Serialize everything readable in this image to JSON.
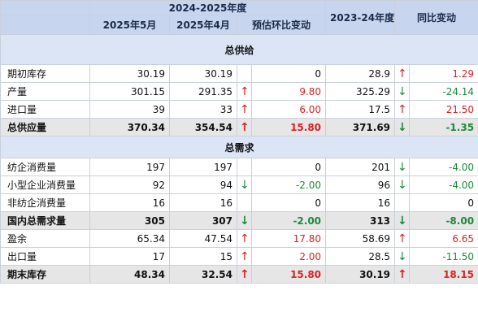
{
  "header": {
    "group_2425": "2024-2025年度",
    "may_2025": "2025年5月",
    "apr_2025": "2025年4月",
    "mom_change": "预估环比变动",
    "year_2324": "2023-24年度",
    "yoy_change": "同比变动"
  },
  "sections": {
    "supply": "总供给",
    "demand": "总需求"
  },
  "rows": {
    "opening_stock": {
      "label": "期初库存",
      "may": "30.19",
      "apr": "30.19",
      "mom": "0",
      "prev": "28.9",
      "yoy": "1.29",
      "yoy_dir": "up"
    },
    "output": {
      "label": "产量",
      "may": "301.15",
      "apr": "291.35",
      "mom": "9.80",
      "mom_dir": "up",
      "prev": "325.29",
      "yoy": "-24.14",
      "yoy_dir": "down"
    },
    "imports": {
      "label": "进口量",
      "may": "39",
      "apr": "33",
      "mom": "6.00",
      "mom_dir": "up",
      "prev": "17.5",
      "yoy": "21.50",
      "yoy_dir": "up"
    },
    "total_supply": {
      "label": "总供应量",
      "may": "370.34",
      "apr": "354.54",
      "mom": "15.80",
      "mom_dir": "up",
      "prev": "371.69",
      "yoy": "-1.35",
      "yoy_dir": "down"
    },
    "mill_use": {
      "label": "纺企消费量",
      "may": "197",
      "apr": "197",
      "mom": "0",
      "prev": "201",
      "yoy": "-4.00",
      "yoy_dir": "down"
    },
    "small_mill_use": {
      "label": "小型企业消费量",
      "may": "92",
      "apr": "94",
      "mom": "-2.00",
      "mom_dir": "down",
      "prev": "96",
      "yoy": "-4.00",
      "yoy_dir": "down"
    },
    "non_mill_use": {
      "label": "非纺企消费量",
      "may": "16",
      "apr": "16",
      "mom": "0",
      "prev": "16",
      "yoy": "0"
    },
    "domestic_demand": {
      "label": "国内总需求量",
      "may": "305",
      "apr": "307",
      "mom": "-2.00",
      "mom_dir": "down",
      "prev": "313",
      "yoy": "-8.00",
      "yoy_dir": "down"
    },
    "surplus": {
      "label": "盈余",
      "may": "65.34",
      "apr": "47.54",
      "mom": "17.80",
      "mom_dir": "up",
      "prev": "58.69",
      "yoy": "6.65",
      "yoy_dir": "up"
    },
    "exports": {
      "label": "出口量",
      "may": "17",
      "apr": "15",
      "mom": "2.00",
      "mom_dir": "up",
      "prev": "28.5",
      "yoy": "-11.50",
      "yoy_dir": "down"
    },
    "ending_stock": {
      "label": "期末库存",
      "may": "48.34",
      "apr": "32.54",
      "mom": "15.80",
      "mom_dir": "up",
      "prev": "30.19",
      "yoy": "18.15",
      "yoy_dir": "up"
    }
  },
  "icons": {
    "up": "↑",
    "down": "↓"
  },
  "colors": {
    "header_bg": "#c7d6ee",
    "section_bg": "#dbe5f5",
    "up": "#e02020",
    "down": "#1c8a3c",
    "total_bg": "#e6e6e6"
  }
}
